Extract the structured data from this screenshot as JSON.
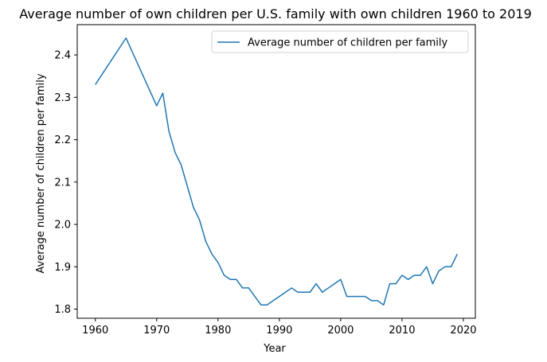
{
  "chart_data": {
    "type": "line",
    "title": "Average number of own children per U.S. family with own children 1960 to 2019",
    "xlabel": "Year",
    "ylabel": "Average number of children per family",
    "xlim": [
      1957.05,
      2021.95
    ],
    "ylim": [
      1.7785,
      2.4715
    ],
    "xticks": [
      1960,
      1970,
      1980,
      1990,
      2000,
      2010,
      2020
    ],
    "yticks": [
      1.8,
      1.9,
      2.0,
      2.1,
      2.2,
      2.3,
      2.4
    ],
    "ytick_labels": [
      "1.8",
      "1.9",
      "2.0",
      "2.1",
      "2.2",
      "2.3",
      "2.4"
    ],
    "grid": false,
    "legend_position": "top-right",
    "series": [
      {
        "name": "Average number of children per family",
        "color": "#1f77b4",
        "x": [
          1960,
          1965,
          1970,
          1971,
          1972,
          1973,
          1974,
          1975,
          1976,
          1977,
          1978,
          1979,
          1980,
          1981,
          1982,
          1983,
          1984,
          1985,
          1986,
          1987,
          1988,
          1989,
          1990,
          1991,
          1992,
          1993,
          1994,
          1995,
          1996,
          1997,
          1998,
          1999,
          2000,
          2001,
          2002,
          2003,
          2004,
          2005,
          2006,
          2007,
          2008,
          2009,
          2010,
          2011,
          2012,
          2013,
          2014,
          2015,
          2016,
          2017,
          2018,
          2019
        ],
        "y": [
          2.33,
          2.44,
          2.28,
          2.31,
          2.22,
          2.17,
          2.14,
          2.09,
          2.04,
          2.01,
          1.96,
          1.93,
          1.91,
          1.88,
          1.87,
          1.87,
          1.85,
          1.85,
          1.83,
          1.81,
          1.81,
          1.82,
          1.83,
          1.84,
          1.85,
          1.84,
          1.84,
          1.84,
          1.86,
          1.84,
          1.85,
          1.86,
          1.87,
          1.83,
          1.83,
          1.83,
          1.83,
          1.82,
          1.82,
          1.81,
          1.86,
          1.86,
          1.88,
          1.87,
          1.88,
          1.88,
          1.9,
          1.86,
          1.89,
          1.9,
          1.9,
          1.93
        ]
      }
    ]
  }
}
